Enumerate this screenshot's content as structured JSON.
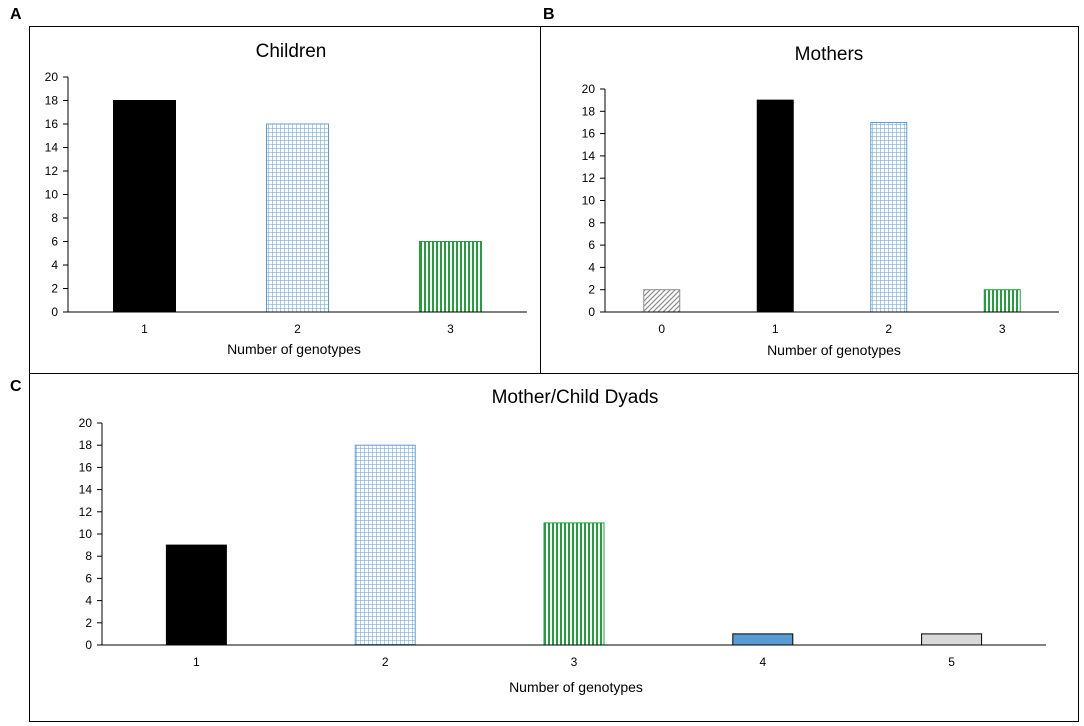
{
  "panel_labels": [
    "A",
    "B",
    "C"
  ],
  "colors": {
    "black": "#000000",
    "blue_pattern": "#5b9bd5",
    "green_pattern": "#22a03c",
    "gray_pattern": "#8c8c8c",
    "solid_blue": "#5b9bd5",
    "light_gray": "#d9d9d9"
  },
  "chart_data": [
    {
      "panel": "A",
      "type": "bar",
      "title": "Children",
      "xlabel": "Number of genotypes",
      "ylabel": "",
      "ylim": [
        0,
        20
      ],
      "yticks": [
        "0",
        "2",
        "4",
        "6",
        "8",
        "10",
        "12",
        "14",
        "16",
        "18",
        "20"
      ],
      "categories": [
        "1",
        "2",
        "3"
      ],
      "values": [
        18,
        16,
        6
      ],
      "fills": [
        "solid-black",
        "grid-blue",
        "vstripe-green"
      ]
    },
    {
      "panel": "B",
      "type": "bar",
      "title": "Mothers",
      "xlabel": "Number of genotypes",
      "ylabel": "",
      "ylim": [
        0,
        20
      ],
      "yticks": [
        "0",
        "2",
        "4",
        "6",
        "8",
        "10",
        "12",
        "14",
        "16",
        "18",
        "20"
      ],
      "categories": [
        "0",
        "1",
        "2",
        "3"
      ],
      "values": [
        2,
        19,
        17,
        2
      ],
      "fills": [
        "diag-gray",
        "solid-black",
        "grid-blue",
        "vstripe-green"
      ]
    },
    {
      "panel": "C",
      "type": "bar",
      "title": "Mother/Child Dyads",
      "xlabel": "Number of genotypes",
      "ylabel": "",
      "ylim": [
        0,
        20
      ],
      "yticks": [
        "0",
        "2",
        "4",
        "6",
        "8",
        "10",
        "12",
        "14",
        "16",
        "18",
        "20"
      ],
      "categories": [
        "1",
        "2",
        "3",
        "4",
        "5"
      ],
      "values": [
        9,
        18,
        11,
        1,
        1
      ],
      "fills": [
        "solid-black",
        "grid-blue",
        "vstripe-green",
        "solid-blue",
        "solid-lightgray"
      ]
    }
  ]
}
